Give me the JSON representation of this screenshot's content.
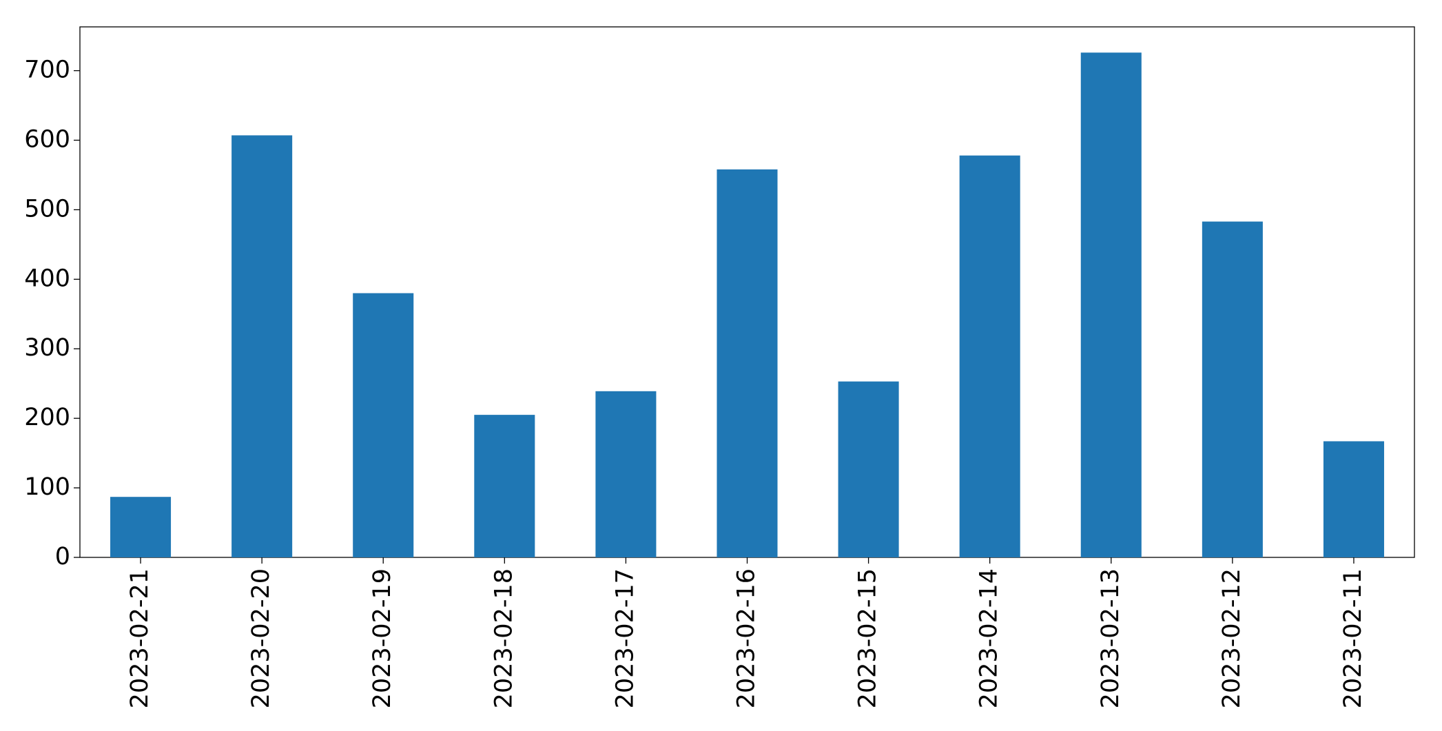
{
  "chart_data": {
    "type": "bar",
    "categories": [
      "2023-02-21",
      "2023-02-20",
      "2023-02-19",
      "2023-02-18",
      "2023-02-17",
      "2023-02-16",
      "2023-02-15",
      "2023-02-14",
      "2023-02-13",
      "2023-02-12",
      "2023-02-11"
    ],
    "values": [
      87,
      607,
      380,
      205,
      239,
      558,
      253,
      578,
      726,
      483,
      167
    ],
    "color": "#1f77b4",
    "ylim": [
      0,
      763
    ],
    "yticks": [
      0,
      100,
      200,
      300,
      400,
      500,
      600,
      700
    ],
    "grid": false
  }
}
